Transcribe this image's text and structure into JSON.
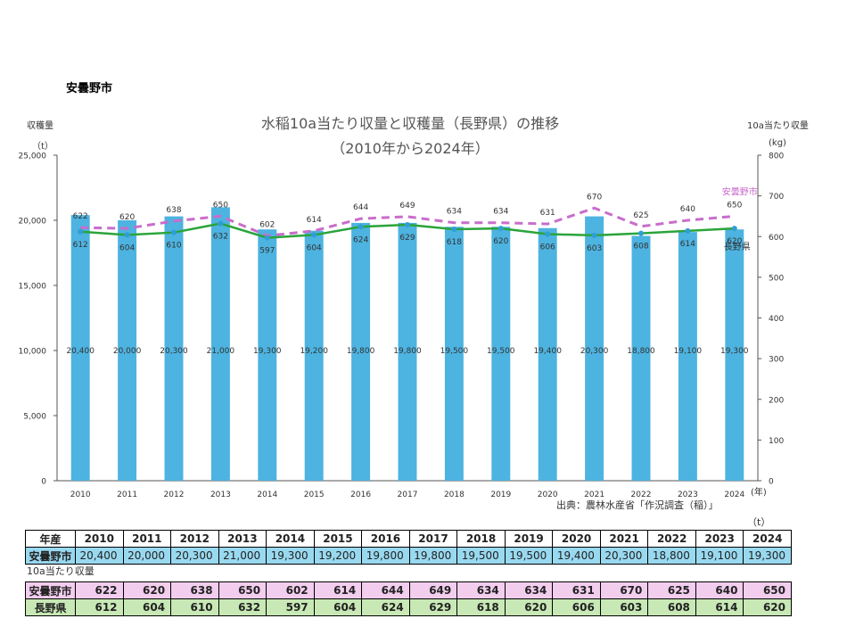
{
  "city_name": "安曇野市",
  "chart_data": {
    "type": "bar+line",
    "title": "水稲10a当たり収量と収穫量（長野県）の推移",
    "subtitle": "（2010年から2024年）",
    "y_left_label": "収穫量",
    "y_left_unit": "（t）",
    "y_right_label": "10a当たり収量",
    "y_right_unit": "(kg)",
    "x_unit": "(年)",
    "ylim_left": [
      0,
      25000
    ],
    "ylim_right": [
      0,
      800
    ],
    "y_left_ticks": [
      "0",
      "5,000",
      "10,000",
      "15,000",
      "20,000",
      "25,000"
    ],
    "y_right_ticks": [
      "0",
      "100",
      "200",
      "300",
      "400",
      "500",
      "600",
      "700",
      "800"
    ],
    "categories": [
      "2010",
      "2011",
      "2012",
      "2013",
      "2014",
      "2015",
      "2016",
      "2017",
      "2018",
      "2019",
      "2020",
      "2021",
      "2022",
      "2023",
      "2024"
    ],
    "bars": {
      "name": "収穫量",
      "values": [
        20400,
        20000,
        20300,
        21000,
        19300,
        19200,
        19800,
        19800,
        19500,
        19500,
        19400,
        20300,
        18800,
        19100,
        19300
      ],
      "labels": [
        "20,400",
        "20,000",
        "20,300",
        "21,000",
        "19,300",
        "19,200",
        "19,800",
        "19,800",
        "19,500",
        "19,500",
        "19,400",
        "20,300",
        "18,800",
        "19,100",
        "19,300"
      ],
      "color": "#4db3e0"
    },
    "series": [
      {
        "name": "安曇野市",
        "values": [
          622,
          620,
          638,
          650,
          602,
          614,
          644,
          649,
          634,
          634,
          631,
          670,
          625,
          640,
          650
        ],
        "color": "#c86dcb",
        "style": "dashed"
      },
      {
        "name": "長野県",
        "values": [
          612,
          604,
          610,
          632,
          597,
          604,
          624,
          629,
          618,
          620,
          606,
          603,
          608,
          614,
          620
        ],
        "color": "#2aa43a",
        "style": "solid"
      }
    ],
    "source": "出典：農林水産省「作況調査（稲）」"
  },
  "table": {
    "unit": "（t）",
    "header_label": "年産",
    "years": [
      "2010",
      "2011",
      "2012",
      "2013",
      "2014",
      "2015",
      "2016",
      "2017",
      "2018",
      "2019",
      "2020",
      "2021",
      "2022",
      "2023",
      "2024"
    ],
    "production_label": "安曇野市",
    "production": [
      "20,400",
      "20,000",
      "20,300",
      "21,000",
      "19,300",
      "19,200",
      "19,800",
      "19,800",
      "19,500",
      "19,500",
      "19,400",
      "20,300",
      "18,800",
      "19,100",
      "19,300"
    ],
    "yield_caption": "10a当たり収量",
    "city_label": "安曇野市",
    "city_yield": [
      "622",
      "620",
      "638",
      "650",
      "602",
      "614",
      "644",
      "649",
      "634",
      "634",
      "631",
      "670",
      "625",
      "640",
      "650"
    ],
    "pref_label": "長野県",
    "pref_yield": [
      "612",
      "604",
      "610",
      "632",
      "597",
      "604",
      "624",
      "629",
      "618",
      "620",
      "606",
      "603",
      "608",
      "614",
      "620"
    ]
  }
}
